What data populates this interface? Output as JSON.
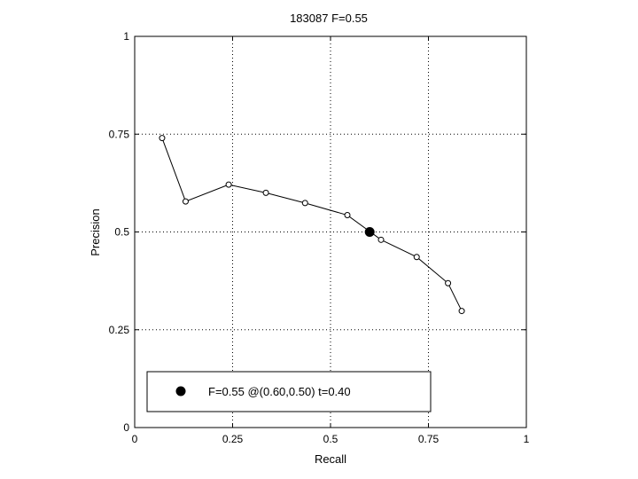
{
  "chart_data": {
    "type": "line",
    "title": "183087 F=0.55",
    "xlabel": "Recall",
    "ylabel": "Precision",
    "xlim": [
      0,
      1
    ],
    "ylim": [
      0,
      1
    ],
    "xticks": [
      0,
      0.25,
      0.5,
      0.75,
      1
    ],
    "yticks": [
      0,
      0.25,
      0.5,
      0.75,
      1
    ],
    "xtick_labels": [
      "0",
      "0.25",
      "0.5",
      "0.75",
      "1"
    ],
    "ytick_labels": [
      "0",
      "0.25",
      "0.5",
      "0.75",
      "1"
    ],
    "grid": true,
    "legend_position": "bottom-left",
    "series": [
      {
        "x": [
          0.07,
          0.13,
          0.24,
          0.335,
          0.435,
          0.543,
          0.629,
          0.72,
          0.8,
          0.835
        ],
        "y": [
          0.74,
          0.578,
          0.621,
          0.6,
          0.574,
          0.543,
          0.48,
          0.436,
          0.369,
          0.298
        ],
        "color": "#000000",
        "marker": "open-circle"
      }
    ],
    "highlight_point": {
      "x": 0.6,
      "y": 0.5,
      "marker": "filled-circle",
      "color": "#000000",
      "label": "F=0.55 @(0.60,0.50) t=0.40"
    }
  }
}
